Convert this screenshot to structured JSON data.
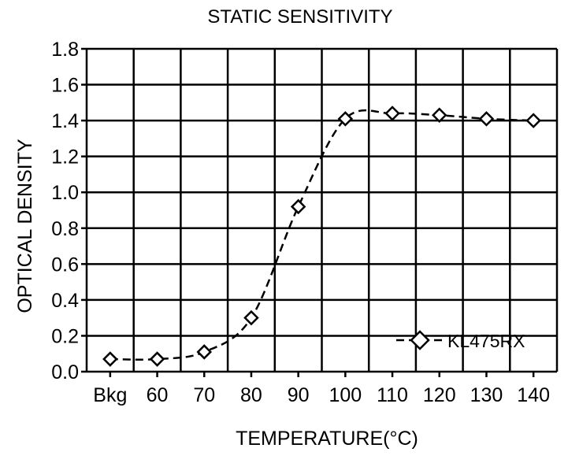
{
  "chart_data": {
    "type": "line",
    "title": "STATIC SENSITIVITY",
    "xlabel": "TEMPERATURE(°C)",
    "ylabel": "OPTICAL DENSITY",
    "categories": [
      "Bkg",
      "60",
      "70",
      "80",
      "90",
      "100",
      "110",
      "120",
      "130",
      "140"
    ],
    "ylim": [
      0.0,
      1.8
    ],
    "yticks": [
      "0.0",
      "0.2",
      "0.4",
      "0.6",
      "0.8",
      "1.0",
      "1.2",
      "1.4",
      "1.6",
      "1.8"
    ],
    "grid": true,
    "legend_position": "bottom-right",
    "series": [
      {
        "name": "KL475RX",
        "values": [
          0.07,
          0.07,
          0.11,
          0.3,
          0.92,
          1.41,
          1.44,
          1.43,
          1.41,
          1.4
        ],
        "marker": "diamond",
        "line_style": "dashed",
        "color": "#000000"
      }
    ]
  }
}
